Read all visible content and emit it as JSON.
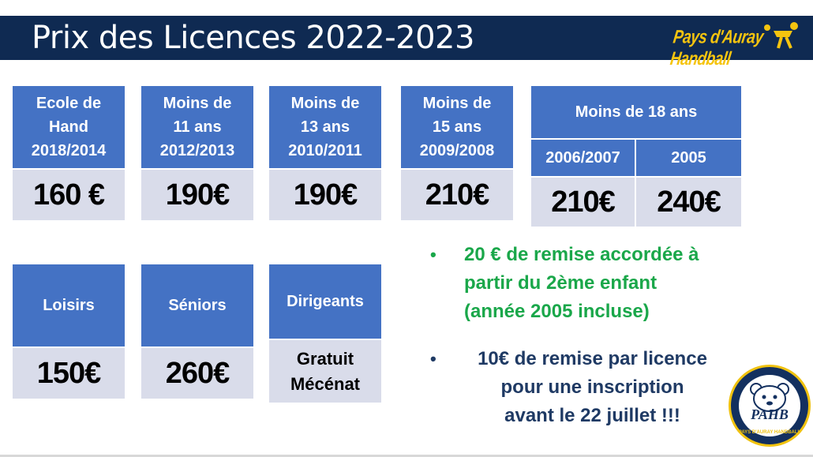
{
  "header": {
    "title": "Prix des Licences 2022-2023",
    "logo_text": "Pays d'Auray Handball"
  },
  "cards": [
    {
      "label": "Ecole de Hand 2018/2014",
      "lines": [
        "Ecole de",
        "Hand",
        "2018/2014"
      ],
      "price": "160 €"
    },
    {
      "label": "Moins de 11 ans 2012/2013",
      "lines": [
        "Moins de",
        "11 ans",
        "2012/2013"
      ],
      "price": "190€"
    },
    {
      "label": "Moins de 13 ans 2010/2011",
      "lines": [
        "Moins de",
        "13 ans",
        "2010/2011"
      ],
      "price": "190€"
    },
    {
      "label": "Moins de 15 ans 2009/2008",
      "lines": [
        "Moins de",
        "15 ans",
        "2009/2008"
      ],
      "price": "210€"
    }
  ],
  "moins18": {
    "title": "Moins de 18 ans",
    "sub": [
      {
        "label": "2006/2007",
        "price": "210€"
      },
      {
        "label": "2005",
        "price": "240€"
      }
    ]
  },
  "cards2": [
    {
      "label": "Loisirs",
      "price": "150€"
    },
    {
      "label": "Séniors",
      "price": "260€"
    },
    {
      "label": "Dirigeants",
      "price_lines": [
        "Gratuit",
        "Mécénat"
      ]
    }
  ],
  "bullets": {
    "bullet_char": "•",
    "remise_enfant": [
      "20 € de remise accordée à",
      "partir du 2ème enfant",
      "(année 2005 incluse)"
    ],
    "remise_licence": [
      "10€ de remise par licence",
      "pour une inscription",
      "avant le 22 juillet !!!"
    ]
  },
  "badge": {
    "label": "PAHB",
    "ring_text": "PAYS D'AURAY HANDBALL"
  },
  "colors": {
    "header_bg": "#0f2a52",
    "card_head": "#4472c4",
    "card_price": "#d9dcea",
    "green_text": "#1aa74a",
    "navy_text": "#1f3a64",
    "logo_yellow": "#f5c40f"
  }
}
